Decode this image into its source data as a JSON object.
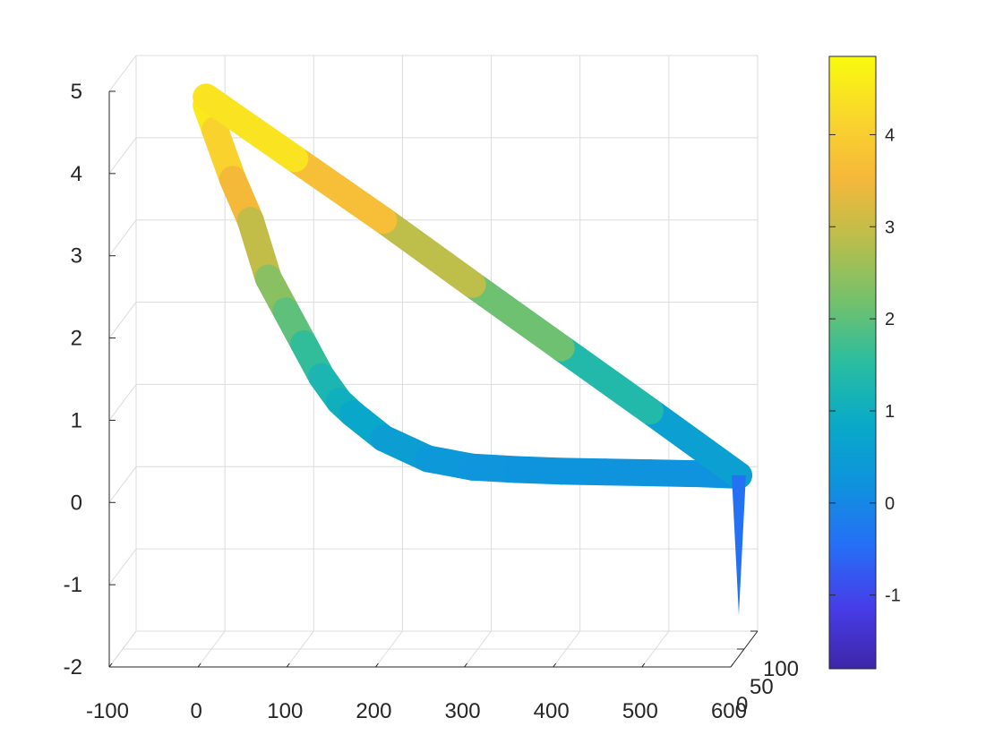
{
  "chart_data": {
    "type": "surface3d",
    "title": "",
    "xlabel": "",
    "ylabel": "",
    "zlabel": "",
    "xlim": [
      -100,
      600
    ],
    "ylim": [
      0,
      100
    ],
    "zlim": [
      -2,
      5
    ],
    "x_ticks": [
      "-100",
      "0",
      "100",
      "200",
      "300",
      "400",
      "500",
      "600"
    ],
    "y_ticks": [
      "0",
      "50",
      "100"
    ],
    "z_ticks": [
      "5",
      "4",
      "3",
      "2",
      "1",
      "0",
      "-1",
      "-2"
    ],
    "grid": true,
    "colormap": "parula",
    "colorbar": {
      "range": [
        -1.8,
        4.85
      ],
      "ticks": [
        "4",
        "3",
        "2",
        "1",
        "0",
        "-1"
      ],
      "placement": "right"
    },
    "curve": {
      "x": [
        0,
        10,
        30,
        50,
        70,
        90,
        110,
        130,
        150,
        165,
        200,
        250,
        300,
        350,
        400,
        450,
        500,
        550,
        600,
        500,
        400,
        300,
        200,
        100,
        0
      ],
      "z": [
        4.7,
        4.4,
        3.8,
        3.3,
        2.6,
        2.2,
        1.8,
        1.4,
        1.1,
        0.95,
        0.65,
        0.4,
        0.3,
        0.27,
        0.25,
        0.24,
        0.23,
        0.22,
        0.2,
        0.98,
        1.75,
        2.52,
        3.3,
        4.05,
        4.8
      ]
    },
    "spike": {
      "x": 600,
      "z_top": 0.2,
      "z_bottom": -1.5
    },
    "colors": {
      "low": "#3e26a8",
      "high": "#f9fb0e",
      "axis": "#262626",
      "grid": "#dcdcdc"
    }
  }
}
